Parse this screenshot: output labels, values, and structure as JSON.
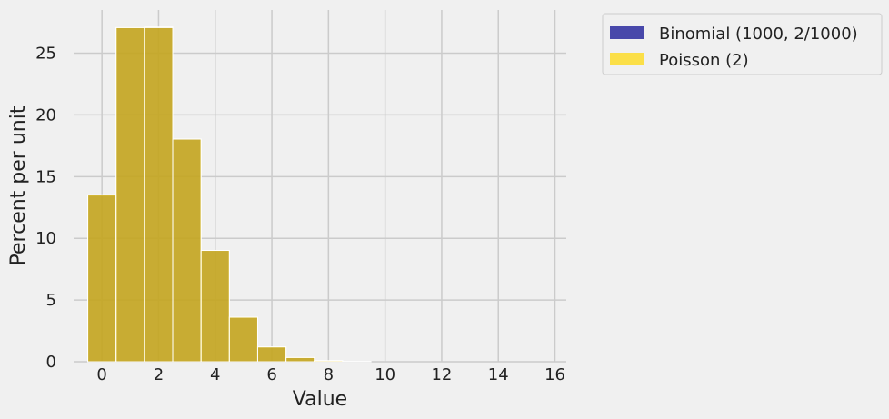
{
  "chart_data": {
    "type": "bar",
    "title": "",
    "xlabel": "Value",
    "ylabel": "Percent per unit",
    "xlim": [
      -1,
      16.4
    ],
    "ylim": [
      0,
      28.5
    ],
    "xticks": [
      0,
      2,
      4,
      6,
      8,
      10,
      12,
      14,
      16
    ],
    "yticks": [
      0,
      5,
      10,
      15,
      20,
      25
    ],
    "grid": true,
    "legend_position": "outside-top-right",
    "bin_width": 1,
    "x": [
      0,
      1,
      2,
      3,
      4,
      5,
      6,
      7,
      8,
      9,
      10,
      11,
      12,
      13,
      14,
      15,
      16
    ],
    "series": [
      {
        "name": "Binomial (1000, 2/1000)",
        "color": "#00008b",
        "values": [
          13.5,
          27.07,
          27.12,
          18.05,
          9.02,
          3.6,
          1.2,
          0.34,
          0.08,
          0.02,
          0.0,
          0.0,
          0.0,
          0.0,
          0.0,
          0.0,
          0.0
        ]
      },
      {
        "name": "Poisson (2)",
        "color": "#ffd700",
        "values": [
          13.53,
          27.07,
          27.07,
          18.04,
          9.02,
          3.61,
          1.2,
          0.34,
          0.09,
          0.02,
          0.0,
          0.0,
          0.0,
          0.0,
          0.0,
          0.0,
          0.0
        ]
      }
    ]
  }
}
